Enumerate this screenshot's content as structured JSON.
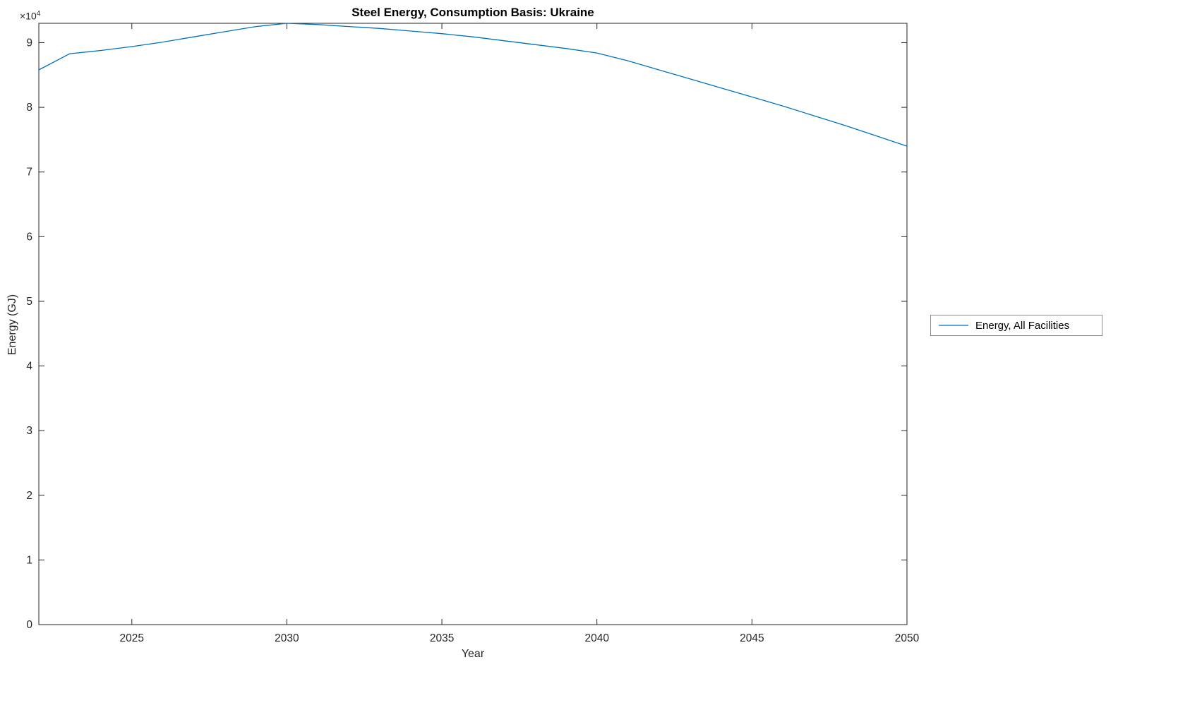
{
  "title": "Steel Energy, Consumption Basis: Ukraine",
  "xlabel": "Year",
  "ylabel": "Energy (GJ)",
  "multiplier_base": "×10",
  "multiplier_exp": "4",
  "legend": {
    "label": "Energy, All Facilities"
  },
  "colors": {
    "line": "#0072BD",
    "axis": "#262626",
    "tick_text": "#262626"
  },
  "chart_data": {
    "type": "line",
    "title": "Steel Energy, Consumption Basis: Ukraine",
    "xlabel": "Year",
    "ylabel": "Energy (GJ)",
    "y_units": "GJ, axis shown as multiples of 1e4",
    "x": [
      2022,
      2023,
      2024,
      2025,
      2026,
      2027,
      2028,
      2029,
      2030,
      2031,
      2032,
      2033,
      2034,
      2035,
      2036,
      2037,
      2038,
      2039,
      2040,
      2041,
      2042,
      2043,
      2044,
      2045,
      2046,
      2047,
      2048,
      2049,
      2050
    ],
    "series": [
      {
        "name": "Energy, All Facilities",
        "color": "#0072BD",
        "values": [
          85800,
          88300,
          88800,
          89400,
          90100,
          90900,
          91700,
          92500,
          93000,
          92800,
          92500,
          92200,
          91800,
          91400,
          90900,
          90300,
          89700,
          89100,
          88400,
          87200,
          85800,
          84400,
          83000,
          81600,
          80200,
          78700,
          77200,
          75600,
          74000
        ]
      }
    ],
    "xlim": [
      2022,
      2050
    ],
    "ylim": [
      0,
      93000
    ],
    "xticks": [
      2025,
      2030,
      2035,
      2040,
      2045,
      2050
    ],
    "ytick_values": [
      0,
      10000,
      20000,
      30000,
      40000,
      50000,
      60000,
      70000,
      80000,
      90000
    ],
    "ytick_labels": [
      "0",
      "1",
      "2",
      "3",
      "4",
      "5",
      "6",
      "7",
      "8",
      "9"
    ],
    "grid": false,
    "legend_position": "outside-right"
  }
}
